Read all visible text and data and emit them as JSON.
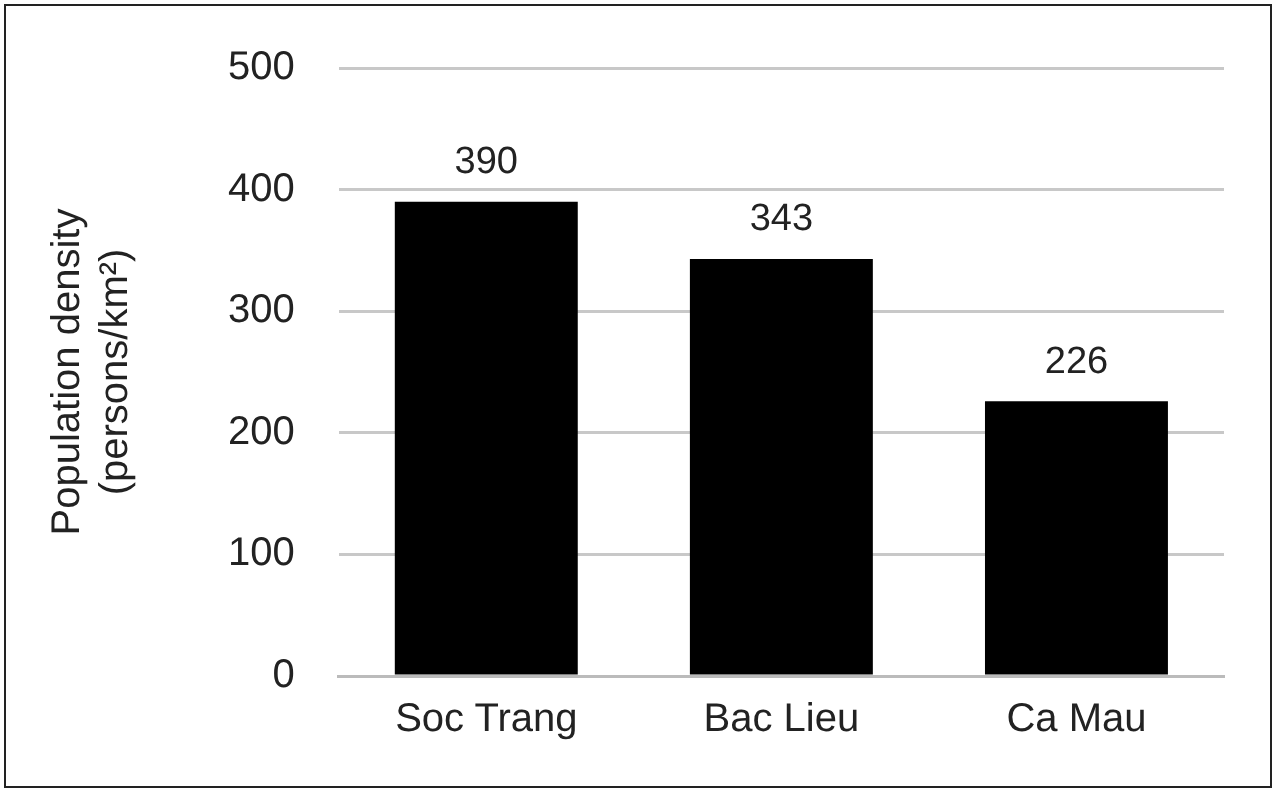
{
  "chart_data": {
    "type": "bar",
    "ylabel": "Population density (persons/km²)",
    "categories": [
      "Soc Trang",
      "Bac Lieu",
      "Ca Mau"
    ],
    "values": [
      390,
      343,
      226
    ],
    "color": "#000000",
    "ylim": [
      0,
      500
    ],
    "yticks": [
      0,
      100,
      200,
      300,
      400,
      500
    ],
    "grid": "y",
    "data_labels": true
  }
}
